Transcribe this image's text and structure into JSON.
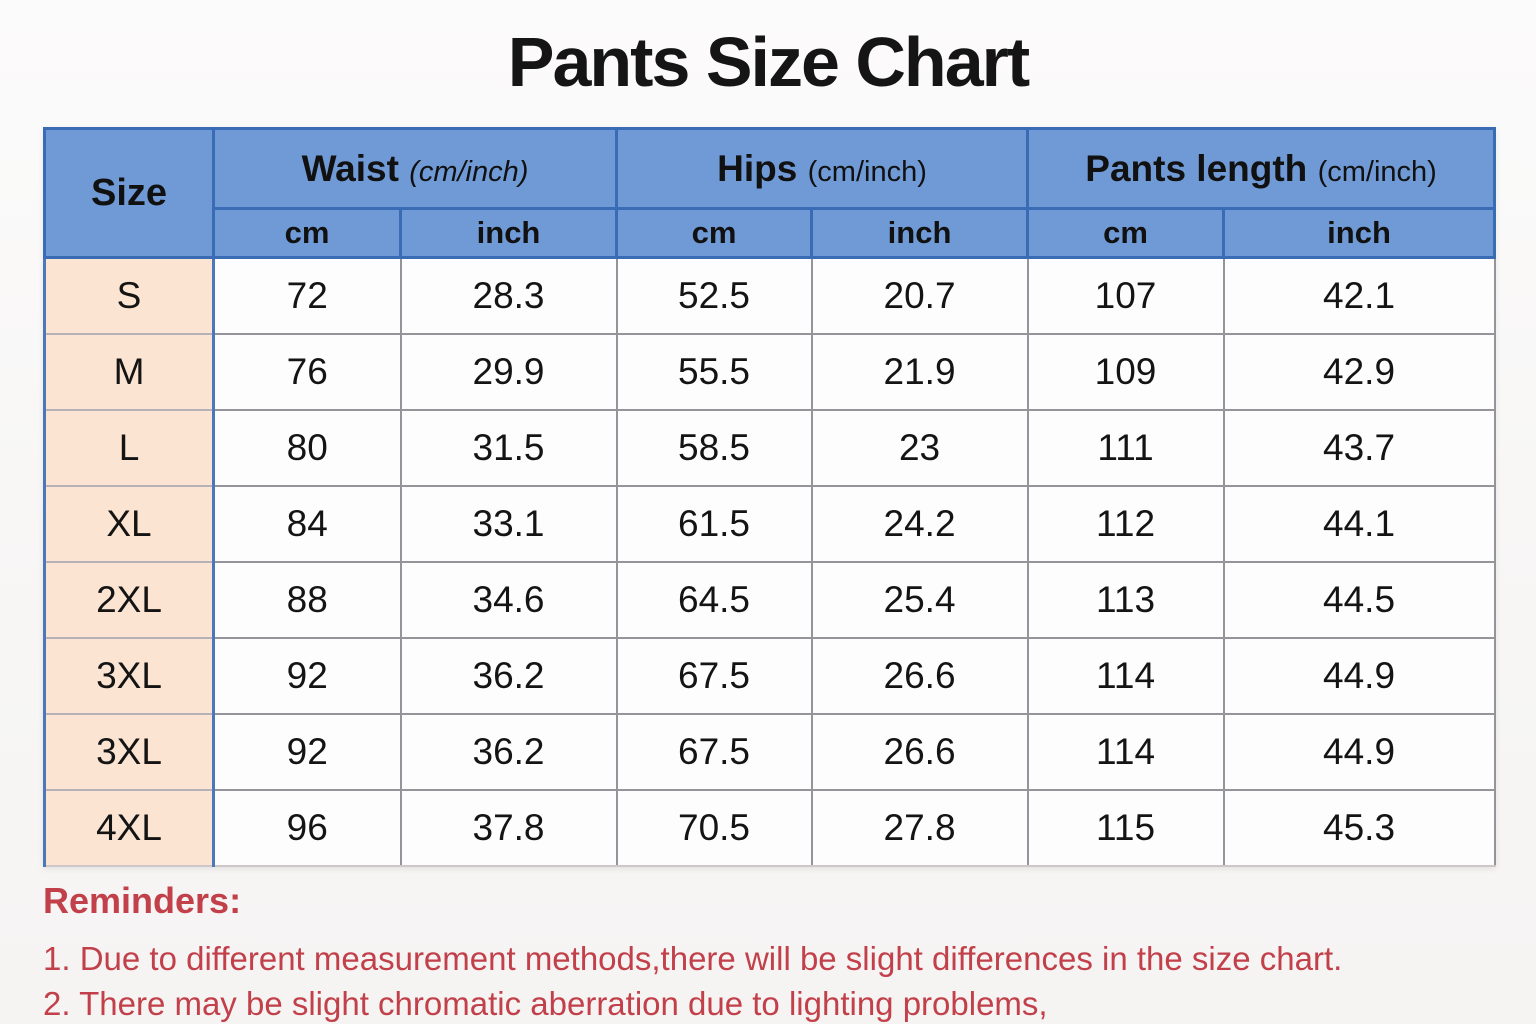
{
  "title": "Pants Size Chart",
  "chart_data": {
    "type": "table",
    "title": "Pants Size Chart",
    "column_groups": [
      {
        "label": "Size",
        "unit": "",
        "span": 1
      },
      {
        "label": "Waist",
        "unit": "(cm/inch)",
        "span": 2
      },
      {
        "label": "Hips",
        "unit": "(cm/inch)",
        "span": 2
      },
      {
        "label": "Pants length",
        "unit": "(cm/inch)",
        "span": 2
      }
    ],
    "subheaders": [
      "cm",
      "inch",
      "cm",
      "inch",
      "cm",
      "inch"
    ],
    "rows": [
      {
        "size": "S",
        "values": [
          "72",
          "28.3",
          "52.5",
          "20.7",
          "107",
          "42.1"
        ]
      },
      {
        "size": "M",
        "values": [
          "76",
          "29.9",
          "55.5",
          "21.9",
          "109",
          "42.9"
        ]
      },
      {
        "size": "L",
        "values": [
          "80",
          "31.5",
          "58.5",
          "23",
          "111",
          "43.7"
        ]
      },
      {
        "size": "XL",
        "values": [
          "84",
          "33.1",
          "61.5",
          "24.2",
          "112",
          "44.1"
        ]
      },
      {
        "size": "2XL",
        "values": [
          "88",
          "34.6",
          "64.5",
          "25.4",
          "113",
          "44.5"
        ]
      },
      {
        "size": "3XL",
        "values": [
          "92",
          "36.2",
          "67.5",
          "26.6",
          "114",
          "44.9"
        ]
      },
      {
        "size": "3XL",
        "values": [
          "92",
          "36.2",
          "67.5",
          "26.6",
          "114",
          "44.9"
        ]
      },
      {
        "size": "4XL",
        "values": [
          "96",
          "37.8",
          "70.5",
          "27.8",
          "115",
          "45.3"
        ]
      }
    ]
  },
  "reminders": {
    "heading": "Reminders:",
    "lines": [
      "1. Due to different measurement methods,there will be slight differences in the size chart.",
      "2. There may be slight chromatic aberration due to lighting problems,"
    ]
  },
  "colors": {
    "header_blue": "#6f9ad6",
    "header_border_blue": "#3a6cb5",
    "size_column_peach": "#fce4d2",
    "body_border_gray": "#94949a",
    "reminder_red": "#c2404a",
    "title_black": "#151515"
  }
}
